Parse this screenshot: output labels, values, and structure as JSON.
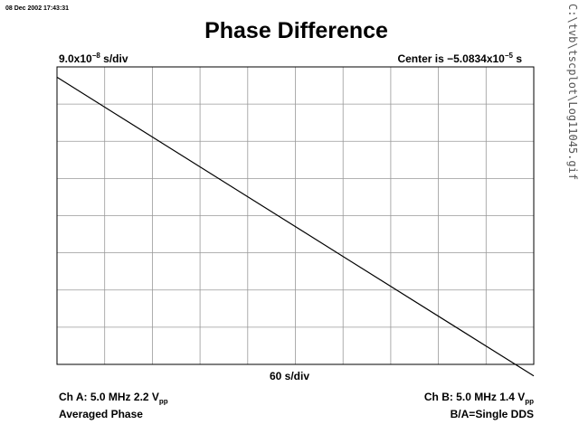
{
  "header": {
    "timestamp": "08 Dec 2002 17:43:31",
    "title": "Phase Difference",
    "file_path": "C:\\tvb\\tscplot\\Log11045.gif"
  },
  "scales": {
    "y_scale_mantissa": "9.0x10",
    "y_scale_exp": "−8",
    "y_scale_unit": " s/div",
    "center_prefix": "Center is −5.0834x10",
    "center_exp": "−5",
    "center_unit": " s",
    "x_scale": "60 s/div"
  },
  "footer": {
    "cha_main": "Ch A: 5.0 MHz 2.2 V",
    "cha_sub": "pp",
    "cha_line2": "Averaged Phase",
    "chb_main": "Ch B: 5.0 MHz 1.4 V",
    "chb_sub": "pp",
    "chb_line2": "B/A=Single DDS"
  },
  "chart_data": {
    "type": "line",
    "x_divisions": 10,
    "y_divisions": 8,
    "grid": true,
    "x_units_per_div": 60,
    "y_units_per_div": 9e-08,
    "series": [
      {
        "x": [
          0,
          600
        ],
        "y": [
          3.35e-07,
          -3.88e-07
        ]
      }
    ]
  }
}
